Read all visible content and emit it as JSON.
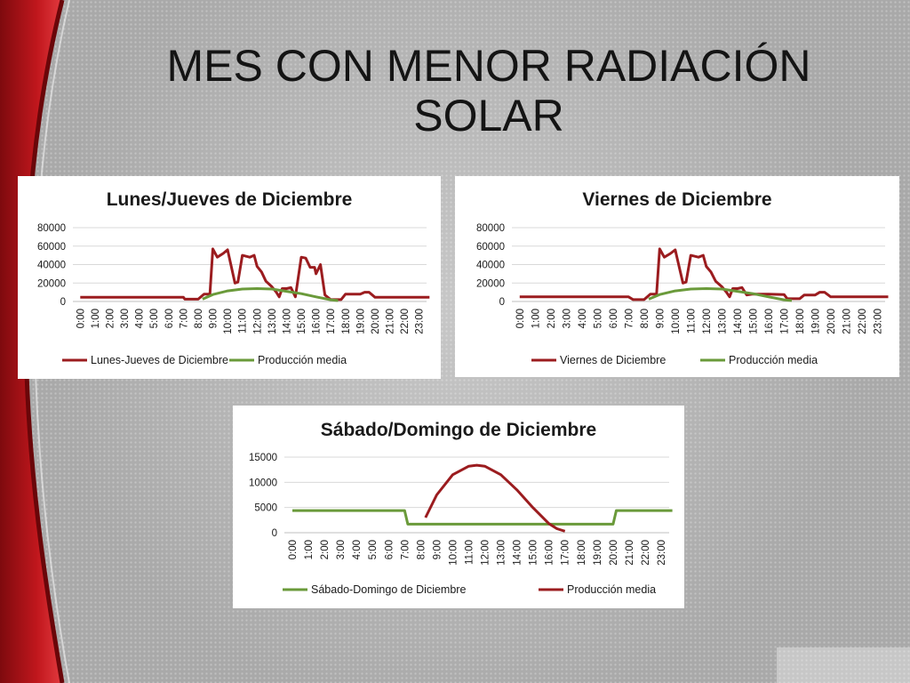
{
  "slide": {
    "title_line1": "MES CON MENOR RADIACIÓN",
    "title_line2": "SOLAR"
  },
  "colors": {
    "red_series": "#9b1c1f",
    "green_series": "#6a9a3a",
    "grid": "#d9d9d9",
    "accent": "#b51218"
  },
  "chart_data": [
    {
      "type": "line",
      "title": "Lunes/Jueves de Diciembre",
      "xlabel": "",
      "ylabel": "",
      "x_ticks": [
        "0:00",
        "1:00",
        "2:00",
        "3:00",
        "4:00",
        "5:00",
        "6:00",
        "7:00",
        "8:00",
        "9:00",
        "10:00",
        "11:00",
        "12:00",
        "13:00",
        "14:00",
        "15:00",
        "16:00",
        "17:00",
        "18:00",
        "19:00",
        "20:00",
        "21:00",
        "22:00",
        "23:00"
      ],
      "y_ticks": [
        "0",
        "20000",
        "40000",
        "60000",
        "80000"
      ],
      "ylim": [
        0,
        80000
      ],
      "grid": true,
      "legend_position": "bottom",
      "series": [
        {
          "name": "Lunes-Jueves de Diciembre",
          "color": "#9b1c1f",
          "points": [
            [
              0,
              4500
            ],
            [
              7,
              4500
            ],
            [
              7.1,
              2500
            ],
            [
              8,
              2500
            ],
            [
              8.4,
              8000
            ],
            [
              8.8,
              8000
            ],
            [
              9,
              57000
            ],
            [
              9.3,
              48000
            ],
            [
              9.7,
              52000
            ],
            [
              10,
              56000
            ],
            [
              10.5,
              20000
            ],
            [
              10.7,
              21000
            ],
            [
              11,
              50000
            ],
            [
              11.5,
              48000
            ],
            [
              11.8,
              50000
            ],
            [
              12,
              38000
            ],
            [
              12.3,
              32000
            ],
            [
              12.6,
              22000
            ],
            [
              13,
              16000
            ],
            [
              13.3,
              10000
            ],
            [
              13.5,
              5000
            ],
            [
              13.7,
              14000
            ],
            [
              14,
              14000
            ],
            [
              14.3,
              15000
            ],
            [
              14.6,
              5000
            ],
            [
              15,
              48000
            ],
            [
              15.3,
              47000
            ],
            [
              15.6,
              37000
            ],
            [
              15.9,
              37000
            ],
            [
              16,
              30000
            ],
            [
              16.3,
              40000
            ],
            [
              16.6,
              7000
            ],
            [
              17,
              2000
            ],
            [
              17.7,
              2000
            ],
            [
              18,
              8000
            ],
            [
              19,
              8000
            ],
            [
              19.3,
              10000
            ],
            [
              19.6,
              10000
            ],
            [
              20,
              4500
            ],
            [
              23.7,
              4500
            ]
          ]
        },
        {
          "name": "Producción media",
          "color": "#6a9a3a",
          "points": [
            [
              8.3,
              2500
            ],
            [
              9,
              7500
            ],
            [
              10,
              11500
            ],
            [
              11,
              13500
            ],
            [
              12,
              14000
            ],
            [
              13,
              13500
            ],
            [
              14,
              11000
            ],
            [
              15,
              8500
            ],
            [
              16,
              5000
            ],
            [
              17,
              1800
            ],
            [
              17.5,
              1000
            ]
          ]
        }
      ]
    },
    {
      "type": "line",
      "title": "Viernes de Diciembre",
      "xlabel": "",
      "ylabel": "",
      "x_ticks": [
        "0:00",
        "1:00",
        "2:00",
        "3:00",
        "4:00",
        "5:00",
        "6:00",
        "7:00",
        "8:00",
        "9:00",
        "10:00",
        "11:00",
        "12:00",
        "13:00",
        "14:00",
        "15:00",
        "16:00",
        "17:00",
        "18:00",
        "19:00",
        "20:00",
        "21:00",
        "22:00",
        "23:00"
      ],
      "y_ticks": [
        "0",
        "20000",
        "40000",
        "60000",
        "80000"
      ],
      "ylim": [
        0,
        80000
      ],
      "grid": true,
      "legend_position": "bottom",
      "series": [
        {
          "name": "Viernes de Diciembre",
          "color": "#9b1c1f",
          "points": [
            [
              0,
              5000
            ],
            [
              7,
              5000
            ],
            [
              7.3,
              2000
            ],
            [
              8,
              2000
            ],
            [
              8.4,
              8000
            ],
            [
              8.8,
              8000
            ],
            [
              9,
              57000
            ],
            [
              9.3,
              48000
            ],
            [
              9.7,
              52000
            ],
            [
              10,
              56000
            ],
            [
              10.5,
              20000
            ],
            [
              10.7,
              21000
            ],
            [
              11,
              50000
            ],
            [
              11.5,
              48000
            ],
            [
              11.8,
              50000
            ],
            [
              12,
              38000
            ],
            [
              12.3,
              32000
            ],
            [
              12.6,
              22000
            ],
            [
              13,
              16000
            ],
            [
              13.3,
              10000
            ],
            [
              13.5,
              5000
            ],
            [
              13.7,
              14000
            ],
            [
              14,
              14000
            ],
            [
              14.3,
              15000
            ],
            [
              14.6,
              7000
            ],
            [
              15,
              8000
            ],
            [
              16,
              8000
            ],
            [
              17,
              7500
            ],
            [
              17.2,
              3000
            ],
            [
              18,
              3000
            ],
            [
              18.3,
              7000
            ],
            [
              19,
              7000
            ],
            [
              19.3,
              10000
            ],
            [
              19.6,
              10000
            ],
            [
              20,
              5000
            ],
            [
              23.7,
              5000
            ]
          ]
        },
        {
          "name": "Producción media",
          "color": "#6a9a3a",
          "points": [
            [
              8.3,
              2500
            ],
            [
              9,
              7500
            ],
            [
              10,
              11500
            ],
            [
              11,
              13500
            ],
            [
              12,
              14000
            ],
            [
              13,
              13500
            ],
            [
              14,
              11000
            ],
            [
              15,
              8500
            ],
            [
              16,
              5000
            ],
            [
              17,
              1800
            ],
            [
              17.5,
              1000
            ]
          ]
        }
      ]
    },
    {
      "type": "line",
      "title": "Sábado/Domingo de Diciembre",
      "xlabel": "",
      "ylabel": "",
      "x_ticks": [
        "0:00",
        "1:00",
        "2:00",
        "3:00",
        "4:00",
        "5:00",
        "6:00",
        "7:00",
        "8:00",
        "9:00",
        "10:00",
        "11:00",
        "12:00",
        "13:00",
        "14:00",
        "15:00",
        "16:00",
        "17:00",
        "18:00",
        "19:00",
        "20:00",
        "21:00",
        "22:00",
        "23:00"
      ],
      "y_ticks": [
        "0",
        "5000",
        "10000",
        "15000"
      ],
      "ylim": [
        0,
        15000
      ],
      "grid": true,
      "legend_position": "bottom",
      "series": [
        {
          "name": "Sábado-Domingo de Diciembre",
          "color": "#6a9a3a",
          "points": [
            [
              0,
              4400
            ],
            [
              7,
              4400
            ],
            [
              7.2,
              1700
            ],
            [
              20,
              1700
            ],
            [
              20.2,
              4400
            ],
            [
              23.7,
              4400
            ]
          ]
        },
        {
          "name": "Producción media",
          "color": "#9b1c1f",
          "points": [
            [
              8.3,
              3000
            ],
            [
              9,
              7500
            ],
            [
              10,
              11500
            ],
            [
              11,
              13200
            ],
            [
              11.5,
              13400
            ],
            [
              12,
              13200
            ],
            [
              13,
              11500
            ],
            [
              14,
              8500
            ],
            [
              15,
              5000
            ],
            [
              16,
              1800
            ],
            [
              16.5,
              800
            ],
            [
              17,
              300
            ]
          ]
        }
      ]
    }
  ]
}
